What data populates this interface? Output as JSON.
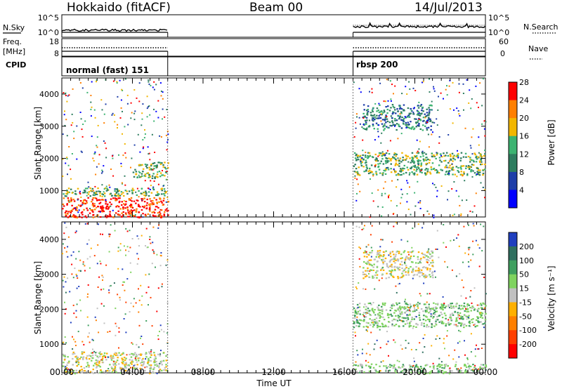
{
  "header": {
    "station": "Hokkaido (fitACF)",
    "beam": "Beam 00",
    "date": "14/Jul/2013"
  },
  "summary_panel": {
    "left_label": "N.Sky",
    "right_label": "N.Search",
    "left_ticks": [
      "10^5",
      "10^0"
    ],
    "right_ticks": [
      "10^5",
      "10^0"
    ],
    "freq_label_top": "Freq.",
    "freq_label_bottom": "[MHz]",
    "freq_ticks": [
      "18",
      "8"
    ],
    "nave_label": "Nave",
    "nave_ticks": [
      "60",
      "0"
    ],
    "cpid_label": "CPID",
    "cpid_segments": [
      {
        "label": "normal (fast) 151",
        "start_hour": 0,
        "end_hour": 6.0
      },
      {
        "label": "rbsp 200",
        "start_hour": 16.5,
        "end_hour": 24
      }
    ]
  },
  "x_axis": {
    "title": "Time UT",
    "tick_labels": [
      "00:00",
      "04:00",
      "08:00",
      "12:00",
      "16:00",
      "20:00",
      "00:00"
    ],
    "tick_hours": [
      0,
      4,
      8,
      12,
      16,
      20,
      24
    ]
  },
  "chart_data": [
    {
      "type": "heatmap",
      "name": "power",
      "ylabel": "Slant Range [km]",
      "y_ticks": [
        1000,
        2000,
        3000,
        4000
      ],
      "ylim": [
        180,
        4500
      ],
      "xlim_hours": [
        0,
        24
      ],
      "colorbar_title": "Power [dB]",
      "colorbar_ticks": [
        "4",
        "8",
        "12",
        "16",
        "20",
        "24",
        "28"
      ],
      "colors": [
        "#0000ff",
        "#1e3ea8",
        "#2e7d5f",
        "#3cb371",
        "#f2b600",
        "#ff7f00",
        "#ff0000"
      ],
      "data_gap_hours": [
        6.0,
        16.5
      ],
      "features": [
        {
          "desc": "near range strong",
          "start_hour": 0,
          "end_hour": 6.0,
          "range_km": [
            180,
            800
          ],
          "level": 28
        },
        {
          "desc": "band",
          "start_hour": 0,
          "end_hour": 6.0,
          "range_km": [
            850,
            1100
          ],
          "level": 14
        },
        {
          "desc": "band",
          "start_hour": 4.0,
          "end_hour": 6.0,
          "range_km": [
            1400,
            1900
          ],
          "level": 16
        },
        {
          "desc": "band",
          "start_hour": 16.5,
          "end_hour": 24,
          "range_km": [
            1500,
            2200
          ],
          "level": 16
        },
        {
          "desc": "band",
          "start_hour": 17.0,
          "end_hour": 21.0,
          "range_km": [
            2900,
            3700
          ],
          "level": 12
        }
      ]
    },
    {
      "type": "heatmap",
      "name": "velocity",
      "ylabel": "Slant Range [km]",
      "y_ticks": [
        1000,
        2000,
        3000,
        4000
      ],
      "ylim": [
        180,
        4500
      ],
      "xlim_hours": [
        0,
        24
      ],
      "colorbar_title": "Velocity [m s⁻¹]",
      "colorbar_ticks": [
        "200",
        "100",
        "50",
        "15",
        "-15",
        "-50",
        "-100",
        "-200"
      ],
      "colors": [
        "#1f3fbf",
        "#2f6f5f",
        "#3f9f5f",
        "#7fd35f",
        "#c0c0c0",
        "#ffb000",
        "#ff7f00",
        "#ff4000",
        "#ff0000"
      ],
      "data_gap_hours": [
        6.0,
        16.5
      ],
      "features": [
        {
          "desc": "ground scatter",
          "start_hour": 0,
          "end_hour": 6.0,
          "range_km": [
            180,
            800
          ],
          "level": 0
        },
        {
          "desc": "band",
          "start_hour": 16.5,
          "end_hour": 24,
          "range_km": [
            1500,
            2200
          ],
          "level": 30
        },
        {
          "desc": "band",
          "start_hour": 16.5,
          "end_hour": 24,
          "range_km": [
            180,
            450
          ],
          "level": 40
        },
        {
          "desc": "band",
          "start_hour": 17.0,
          "end_hour": 21.0,
          "range_km": [
            2900,
            3700
          ],
          "level": 0
        }
      ]
    }
  ]
}
